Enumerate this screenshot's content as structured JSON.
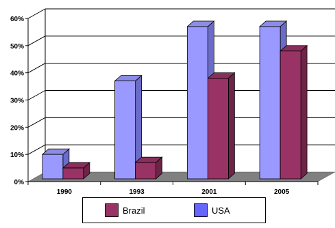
{
  "chart_data": {
    "type": "bar",
    "categories": [
      "1990",
      "1993",
      "2001",
      "2005"
    ],
    "series": [
      {
        "name": "Brazil",
        "values": [
          4,
          6,
          37,
          47
        ],
        "color": "#993366"
      },
      {
        "name": "USA",
        "values": [
          9,
          36,
          56,
          56
        ],
        "color": "#9999FF"
      }
    ],
    "y_ticks": [
      "0%",
      "10%",
      "20%",
      "30%",
      "40%",
      "50%",
      "60%"
    ],
    "ylim": [
      0,
      60
    ],
    "y_unit": "%",
    "grid": true,
    "legend_position": "bottom",
    "style": "3d"
  },
  "legend": {
    "items": [
      {
        "label": "Brazil",
        "color": "#993366"
      },
      {
        "label": "USA",
        "color": "#6666FF"
      }
    ]
  }
}
